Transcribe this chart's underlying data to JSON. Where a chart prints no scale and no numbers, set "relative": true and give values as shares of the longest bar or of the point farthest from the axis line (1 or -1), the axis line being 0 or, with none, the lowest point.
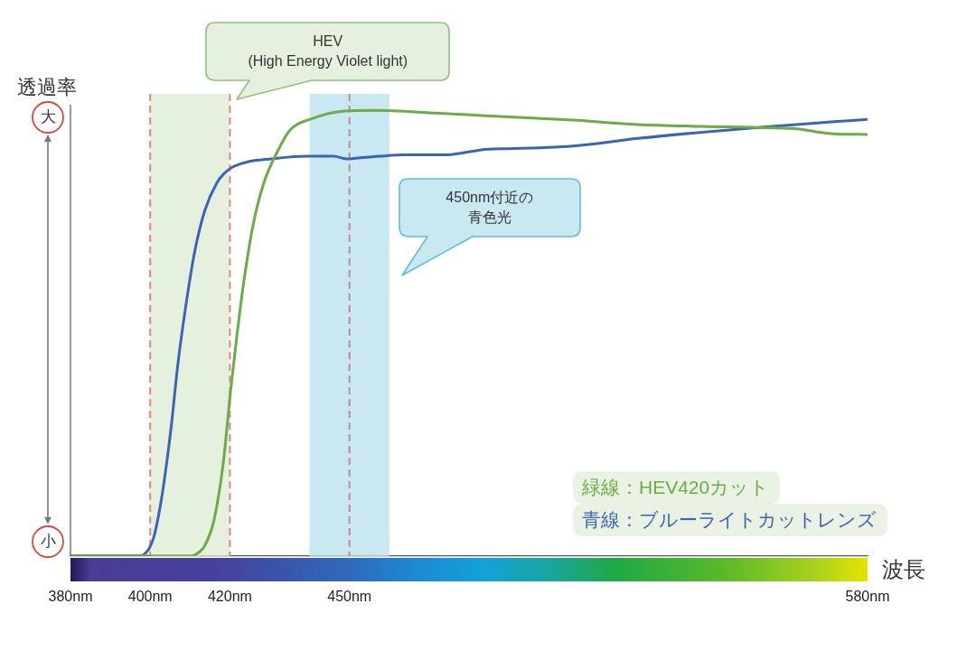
{
  "chart_data": {
    "type": "line",
    "xlabel": "波長",
    "ylabel": "透過率",
    "relative": true,
    "xlim": [
      380,
      580
    ],
    "xticks": [
      {
        "value": 380,
        "label": "380nm"
      },
      {
        "value": 400,
        "label": "400nm"
      },
      {
        "value": 420,
        "label": "420nm"
      },
      {
        "value": 450,
        "label": "450nm"
      },
      {
        "value": 580,
        "label": "580nm"
      }
    ],
    "series": [
      {
        "name": "緑線：HEV420カット",
        "color": "#6aac46",
        "x": [
          380,
          410,
          411.1,
          412.5,
          413.7,
          416,
          418.3,
          420.1,
          421.7,
          423.5,
          425.8,
          428.5,
          431.9,
          435,
          440.5,
          448.3,
          456.1,
          471.8,
          484.3,
          506.1,
          522.3,
          538.5,
          554.7,
          562.8,
          567,
          572.5,
          580
        ],
        "values": [
          0,
          0,
          0.002,
          0.01,
          0.023,
          0.08,
          0.206,
          0.364,
          0.49,
          0.616,
          0.742,
          0.837,
          0.907,
          0.955,
          0.981,
          0.998,
          1,
          0.994,
          0.988,
          0.978,
          0.968,
          0.964,
          0.961,
          0.958,
          0.952,
          0.947,
          0.946
        ]
      },
      {
        "name": "青線：ブルーライトカットレンズ",
        "color": "#3b64b5",
        "x": [
          380,
          397.5,
          398.5,
          399.7,
          400.9,
          402,
          403.1,
          404.3,
          405.4,
          406.9,
          408.8,
          411.1,
          413.7,
          416.7,
          418.5,
          420.5,
          424.3,
          430.3,
          439.4,
          446,
          449.5,
          452,
          457.6,
          463.8,
          473.7,
          484.8,
          490,
          506.1,
          522.3,
          538.5,
          554.7,
          570.9,
          580
        ],
        "values": [
          0,
          0,
          0.004,
          0.016,
          0.042,
          0.086,
          0.143,
          0.22,
          0.3,
          0.427,
          0.553,
          0.68,
          0.775,
          0.837,
          0.858,
          0.872,
          0.884,
          0.891,
          0.897,
          0.897,
          0.891,
          0.893,
          0.897,
          0.9,
          0.9,
          0.913,
          0.914,
          0.92,
          0.937,
          0.951,
          0.963,
          0.974,
          0.98
        ]
      }
    ],
    "bands": [
      {
        "axis": "x",
        "from": 400,
        "to": 420,
        "color": "#e5f1de"
      },
      {
        "axis": "x",
        "from": 440,
        "to": 460,
        "color": "#cae8f1"
      }
    ],
    "ref_lines": [
      {
        "axis": "x",
        "value": 400,
        "color": "#e8827c",
        "line_style": "dashed"
      },
      {
        "axis": "x",
        "value": 420,
        "color": "#e8827c",
        "line_style": "dashed"
      },
      {
        "axis": "x",
        "value": 450,
        "color": "#c98890",
        "line_style": "dashed"
      }
    ],
    "annotations": [
      "大",
      "小",
      "HEV\n(High Energy Violet light)",
      "450nm付近の青色光"
    ],
    "legend": "bottom right",
    "marker": "none",
    "line_style": "solid"
  }
}
